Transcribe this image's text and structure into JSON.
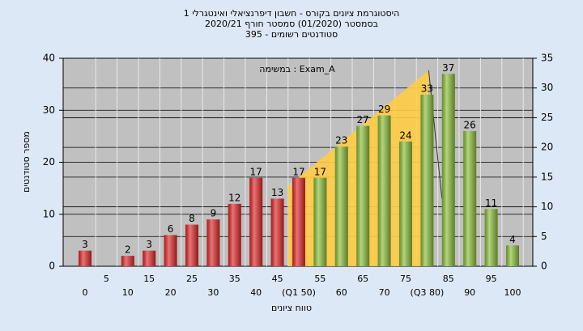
{
  "chart_data": {
    "type": "bar",
    "title": [
      "היסטוגרמת ציונים בקורס - חשבון דיפרנציאלי ואינטגרלי 1",
      "בסמסטר  (01/2020)  סמסטר חורף  2020/21",
      "סטודנטים רשומים - 395"
    ],
    "annotation": "במשימה : Exam_A",
    "x_label": "טווח ציונים",
    "y_label": "מספר סטודנטים",
    "categories": [
      "0",
      "5",
      "10",
      "15",
      "20",
      "25",
      "30",
      "35",
      "40",
      "45",
      "(Q1 50)",
      "55",
      "60",
      "65",
      "70",
      "75",
      "(Q3 80)",
      "85",
      "90",
      "95",
      "100"
    ],
    "values": [
      3,
      0,
      2,
      3,
      6,
      8,
      9,
      12,
      17,
      13,
      17,
      17,
      23,
      27,
      29,
      24,
      33,
      37,
      26,
      11,
      4
    ],
    "colors": [
      "#e02828",
      "#e02828",
      "#e02828",
      "#e02828",
      "#e02828",
      "#e02828",
      "#e02828",
      "#e02828",
      "#e02828",
      "#e02828",
      "#e02828",
      "#8cbf3a",
      "#8cbf3a",
      "#8cbf3a",
      "#8cbf3a",
      "#8cbf3a",
      "#8cbf3a",
      "#8cbf3a",
      "#8cbf3a",
      "#8cbf3a",
      "#8cbf3a"
    ],
    "ylim": [
      0,
      40
    ],
    "yticks": [
      0,
      10,
      20,
      30,
      40
    ],
    "y2lim": [
      0,
      35
    ],
    "y2ticks": [
      0,
      5,
      10,
      15,
      20,
      25,
      30,
      35
    ],
    "grid": true
  }
}
